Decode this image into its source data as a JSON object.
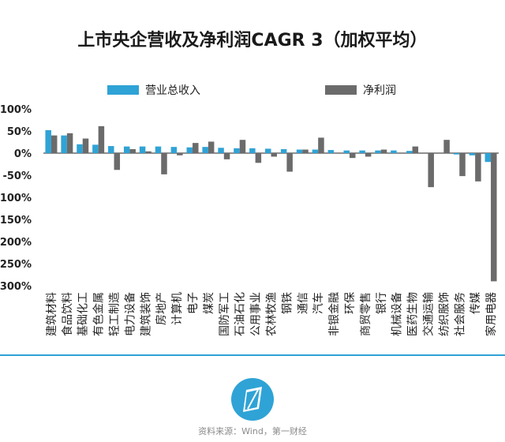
{
  "title": "上市央企营收及净利润CAGR 3（加权平均）",
  "source": "资料来源：Wind，第一财经",
  "colors": {
    "revenue": "#2fa3d6",
    "profit": "#6b6b6b",
    "accent": "#2fa3d6"
  },
  "chart_data": {
    "type": "bar",
    "title": "上市央企营收及净利润CAGR 3（加权平均）",
    "legend_position": "top",
    "ylim": [
      -300,
      100
    ],
    "yticks": [
      "100%",
      "50%",
      "0%",
      "-50%",
      "-100%",
      "-150%",
      "-200%",
      "-250%",
      "-300%"
    ],
    "categories": [
      "建筑材料",
      "食品饮料",
      "基础化工",
      "有色金属",
      "轻工制造",
      "电力设备",
      "建筑装饰",
      "房地产",
      "计算机",
      "电子",
      "煤炭",
      "国防军工",
      "石油石化",
      "公用事业",
      "农林牧渔",
      "钢铁",
      "通信",
      "汽车",
      "非银金融",
      "环保",
      "商贸零售",
      "银行",
      "机械设备",
      "医药生物",
      "交通运输",
      "纺织服饰",
      "社会服务",
      "传媒",
      "家用电器"
    ],
    "series": [
      {
        "name": "营业总收入",
        "values": [
          52,
          40,
          20,
          19,
          16,
          15,
          15,
          15,
          14,
          13,
          14,
          12,
          11,
          11,
          10,
          9,
          8,
          8,
          7,
          6,
          6,
          6,
          6,
          5,
          0,
          0,
          -3,
          -5,
          -20
        ]
      },
      {
        "name": "净利润",
        "values": [
          40,
          45,
          33,
          61,
          -38,
          9,
          4,
          -48,
          -5,
          23,
          26,
          -14,
          30,
          -22,
          -8,
          -42,
          8,
          35,
          0,
          -11,
          -8,
          8,
          0,
          15,
          -77,
          30,
          -52,
          -64,
          -290
        ]
      }
    ]
  }
}
